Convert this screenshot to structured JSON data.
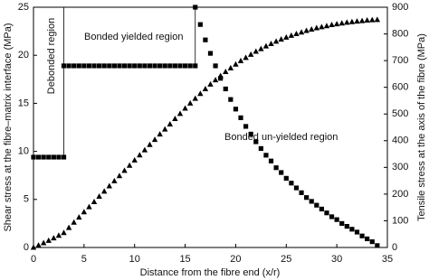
{
  "chart_data": {
    "type": "scatter",
    "xlabel": "Distance from the fibre end (x/r)",
    "ylabel": "Shear stress at the fibre–matrix interface (MPa)",
    "y2label": "Tensile stress at the axis of the fibre (MPa)",
    "xlim": [
      0,
      35
    ],
    "xticks": [
      0,
      5,
      10,
      15,
      20,
      25,
      30,
      35
    ],
    "ylim": [
      0,
      25
    ],
    "yticks": [
      0,
      5,
      10,
      15,
      20,
      25
    ],
    "y2lim": [
      0,
      900
    ],
    "y2ticks": [
      0,
      100,
      200,
      300,
      400,
      500,
      600,
      700,
      800,
      900
    ],
    "annotations": [
      "Bonded yielded region",
      "Debonded region",
      "Bonded un-yielded region"
    ],
    "series": [
      {
        "marker": "square",
        "color": "#000000",
        "axis": "y",
        "x": [
          0,
          0.5,
          1,
          1.5,
          2,
          2.5,
          3,
          3,
          3.5,
          4,
          4.5,
          5,
          5.5,
          6,
          6.5,
          7,
          7.5,
          8,
          8.5,
          9,
          9.5,
          10,
          10.5,
          11,
          11.5,
          12,
          12.5,
          13,
          13.5,
          14,
          14.5,
          15,
          15.5,
          16,
          16,
          16.5,
          17,
          17.5,
          18,
          18.5,
          19,
          19.5,
          20,
          20.5,
          21,
          21.5,
          22,
          22.5,
          23,
          23.5,
          24,
          24.5,
          25,
          25.5,
          26,
          26.5,
          27,
          27.5,
          28,
          28.5,
          29,
          29.5,
          30,
          30.5,
          31,
          31.5,
          32,
          32.5,
          33,
          33.5,
          34
        ],
        "values": [
          9.4,
          9.4,
          9.4,
          9.4,
          9.4,
          9.4,
          9.4,
          18.9,
          18.9,
          18.9,
          18.9,
          18.9,
          18.9,
          18.9,
          18.9,
          18.9,
          18.9,
          18.9,
          18.9,
          18.9,
          18.9,
          18.9,
          18.9,
          18.9,
          18.9,
          18.9,
          18.9,
          18.9,
          18.9,
          18.9,
          18.9,
          18.9,
          18.9,
          18.9,
          25,
          23.2,
          21.6,
          20.2,
          18.9,
          17.6,
          16.5,
          15.4,
          14.4,
          13.5,
          12.6,
          11.8,
          11.0,
          10.3,
          9.6,
          9.0,
          8.3,
          7.8,
          7.2,
          6.7,
          6.2,
          5.7,
          5.2,
          4.8,
          4.4,
          4.0,
          3.6,
          3.2,
          2.9,
          2.5,
          2.2,
          1.9,
          1.6,
          1.2,
          0.9,
          0.6,
          0.2
        ]
      },
      {
        "marker": "triangle",
        "color": "#000000",
        "axis": "y2",
        "x": [
          0,
          0.5,
          1,
          1.5,
          2,
          2.5,
          3,
          3.5,
          4,
          4.5,
          5,
          5.5,
          6,
          6.5,
          7,
          7.5,
          8,
          8.5,
          9,
          9.5,
          10,
          10.5,
          11,
          11.5,
          12,
          12.5,
          13,
          13.5,
          14,
          14.5,
          15,
          15.5,
          16,
          16.5,
          17,
          17.5,
          18,
          18.5,
          19,
          19.5,
          20,
          20.5,
          21,
          21.5,
          22,
          22.5,
          23,
          23.5,
          24,
          24.5,
          25,
          25.5,
          26,
          26.5,
          27,
          27.5,
          28,
          28.5,
          29,
          29.5,
          30,
          30.5,
          31,
          31.5,
          32,
          32.5,
          33,
          33.5,
          34
        ],
        "values": [
          0,
          8,
          17,
          26,
          35,
          45,
          55,
          74,
          94,
          113,
          133,
          152,
          171,
          191,
          210,
          230,
          249,
          268,
          288,
          307,
          327,
          346,
          365,
          385,
          404,
          424,
          443,
          462,
          482,
          501,
          521,
          540,
          558,
          576,
          594,
          611,
          627,
          643,
          658,
          672,
          686,
          699,
          711,
          723,
          734,
          744,
          754,
          763,
          772,
          780,
          787,
          794,
          800,
          806,
          812,
          817,
          822,
          826,
          830,
          834,
          837,
          840,
          843,
          845,
          847,
          849,
          851,
          852,
          853
        ]
      }
    ]
  }
}
